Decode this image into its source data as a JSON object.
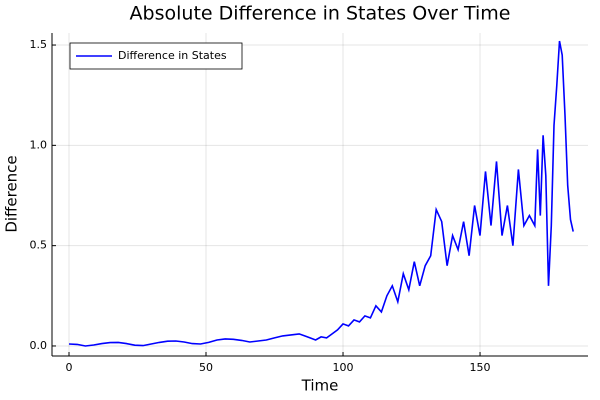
{
  "chart_data": {
    "type": "line",
    "title": "Absolute Difference in States Over Time",
    "x_label": "Time",
    "y_label": "Difference",
    "series": [
      {
        "name": "Difference in States",
        "color": "#0000ff",
        "x": [
          0,
          3,
          6,
          9,
          12,
          15,
          18,
          21,
          24,
          27,
          30,
          33,
          36,
          39,
          42,
          45,
          48,
          51,
          54,
          57,
          60,
          63,
          66,
          69,
          72,
          75,
          78,
          81,
          84,
          86,
          88,
          90,
          92,
          94,
          96,
          98,
          100,
          102,
          104,
          106,
          108,
          110,
          112,
          114,
          116,
          118,
          120,
          122,
          124,
          126,
          128,
          130,
          132,
          134,
          136,
          138,
          140,
          142,
          144,
          146,
          148,
          150,
          152,
          154,
          156,
          158,
          160,
          162,
          164,
          166,
          168,
          170,
          171,
          172,
          173,
          174,
          175,
          176,
          177,
          178,
          179,
          180,
          181,
          182,
          183,
          184
        ],
        "values": [
          0.01,
          0.008,
          0.0,
          0.005,
          0.012,
          0.017,
          0.018,
          0.012,
          0.004,
          0.002,
          0.01,
          0.018,
          0.024,
          0.025,
          0.02,
          0.012,
          0.01,
          0.018,
          0.03,
          0.035,
          0.033,
          0.028,
          0.02,
          0.025,
          0.03,
          0.04,
          0.05,
          0.055,
          0.06,
          0.05,
          0.04,
          0.03,
          0.045,
          0.04,
          0.06,
          0.08,
          0.11,
          0.1,
          0.13,
          0.12,
          0.15,
          0.14,
          0.2,
          0.17,
          0.25,
          0.3,
          0.22,
          0.36,
          0.28,
          0.42,
          0.3,
          0.4,
          0.45,
          0.68,
          0.62,
          0.4,
          0.55,
          0.48,
          0.62,
          0.45,
          0.7,
          0.55,
          0.87,
          0.6,
          0.92,
          0.55,
          0.7,
          0.5,
          0.88,
          0.6,
          0.65,
          0.6,
          0.98,
          0.65,
          1.05,
          0.85,
          0.3,
          0.6,
          1.1,
          1.3,
          1.52,
          1.45,
          1.15,
          0.8,
          0.63,
          0.57
        ]
      }
    ],
    "xlim": [
      -6.2,
      189.4
    ],
    "xticks": [
      0,
      50,
      100,
      150
    ],
    "ylim": [
      -0.05,
      1.56
    ],
    "yticks": [
      {
        "value": 0,
        "label": "0.0"
      },
      {
        "value": 0.5,
        "label": "0.5"
      },
      {
        "value": 1,
        "label": "1.0"
      },
      {
        "value": 1.5,
        "label": "1.5"
      }
    ],
    "grid": true,
    "legend": "top-left"
  }
}
